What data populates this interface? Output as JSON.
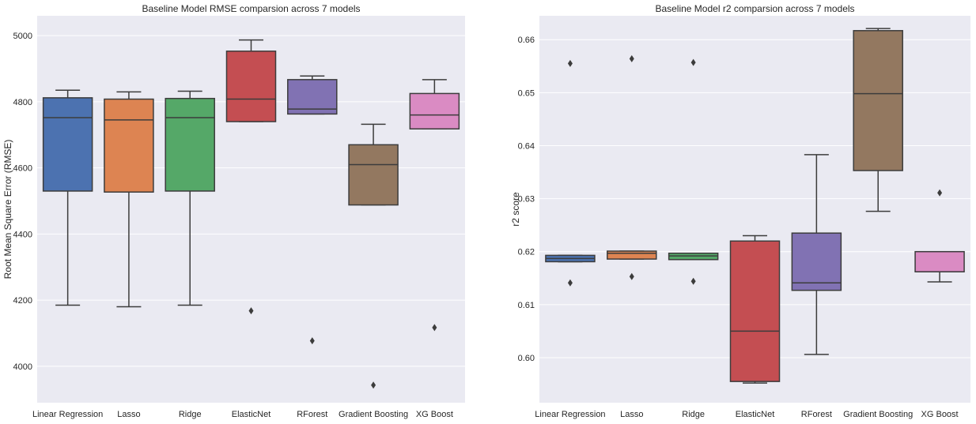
{
  "chart_data": [
    {
      "type": "box",
      "title": "Baseline Model RMSE comparsion across 7 models",
      "xlabel": "",
      "ylabel": "Root Mean Square Error (RMSE)",
      "ylim": [
        3890,
        5060
      ],
      "yticks": [
        4000,
        4200,
        4400,
        4600,
        4800,
        5000
      ],
      "grid": true,
      "categories": [
        "Linear Regression",
        "Lasso",
        "Ridge",
        "ElasticNet",
        "RForest",
        "Gradient Boosting",
        "XG Boost"
      ],
      "boxes": [
        {
          "whisker_low": 4185,
          "q1": 4530,
          "median": 4752,
          "q3": 4812,
          "whisker_high": 4835,
          "outliers": []
        },
        {
          "whisker_low": 4180,
          "q1": 4527,
          "median": 4745,
          "q3": 4808,
          "whisker_high": 4830,
          "outliers": []
        },
        {
          "whisker_low": 4185,
          "q1": 4530,
          "median": 4752,
          "q3": 4810,
          "whisker_high": 4832,
          "outliers": []
        },
        {
          "whisker_low": 4740,
          "q1": 4740,
          "median": 4808,
          "q3": 4953,
          "whisker_high": 4987,
          "outliers": [
            4168
          ]
        },
        {
          "whisker_low": 4763,
          "q1": 4763,
          "median": 4778,
          "q3": 4867,
          "whisker_high": 4878,
          "outliers": [
            4077
          ]
        },
        {
          "whisker_low": 4488,
          "q1": 4488,
          "median": 4610,
          "q3": 4670,
          "whisker_high": 4732,
          "outliers": [
            3943
          ]
        },
        {
          "whisker_low": 4718,
          "q1": 4718,
          "median": 4760,
          "q3": 4825,
          "whisker_high": 4867,
          "outliers": [
            4117
          ]
        }
      ]
    },
    {
      "type": "box",
      "title": "Baseline Model r2 comparsion across 7 models",
      "xlabel": "",
      "ylabel": "r2 score",
      "ylim": [
        0.5915,
        0.6645
      ],
      "yticks": [
        0.6,
        0.61,
        0.62,
        0.63,
        0.64,
        0.65,
        0.66
      ],
      "yticklabels": [
        "0.60",
        "0.61",
        "0.62",
        "0.63",
        "0.64",
        "0.65",
        "0.66"
      ],
      "grid": true,
      "categories": [
        "Linear Regression",
        "Lasso",
        "Ridge",
        "ElasticNet",
        "RForest",
        "Gradient Boosting",
        "XG Boost"
      ],
      "boxes": [
        {
          "whisker_low": 0.6181,
          "q1": 0.6181,
          "median": 0.6187,
          "q3": 0.6193,
          "whisker_high": 0.6193,
          "outliers": [
            0.6555,
            0.6141
          ]
        },
        {
          "whisker_low": 0.6186,
          "q1": 0.6186,
          "median": 0.6197,
          "q3": 0.6201,
          "whisker_high": 0.6201,
          "outliers": [
            0.6564,
            0.6153
          ]
        },
        {
          "whisker_low": 0.6185,
          "q1": 0.6185,
          "median": 0.6192,
          "q3": 0.6197,
          "whisker_high": 0.6197,
          "outliers": [
            0.6557,
            0.6144
          ]
        },
        {
          "whisker_low": 0.5952,
          "q1": 0.5955,
          "median": 0.605,
          "q3": 0.622,
          "whisker_high": 0.623,
          "outliers": []
        },
        {
          "whisker_low": 0.6006,
          "q1": 0.6127,
          "median": 0.6141,
          "q3": 0.6235,
          "whisker_high": 0.6383,
          "outliers": []
        },
        {
          "whisker_low": 0.6276,
          "q1": 0.6353,
          "median": 0.6498,
          "q3": 0.6617,
          "whisker_high": 0.6621,
          "outliers": []
        },
        {
          "whisker_low": 0.6143,
          "q1": 0.6162,
          "median": 0.6162,
          "q3": 0.62,
          "whisker_high": 0.62,
          "outliers": [
            0.6311
          ]
        }
      ]
    }
  ],
  "colors": [
    "#4c72b0",
    "#dd8452",
    "#55a868",
    "#c44e52",
    "#8172b3",
    "#937860",
    "#da8bc3"
  ],
  "background": "#eaeaf2",
  "gridColor": "#ffffff",
  "lineColor": "#3c3c3c"
}
